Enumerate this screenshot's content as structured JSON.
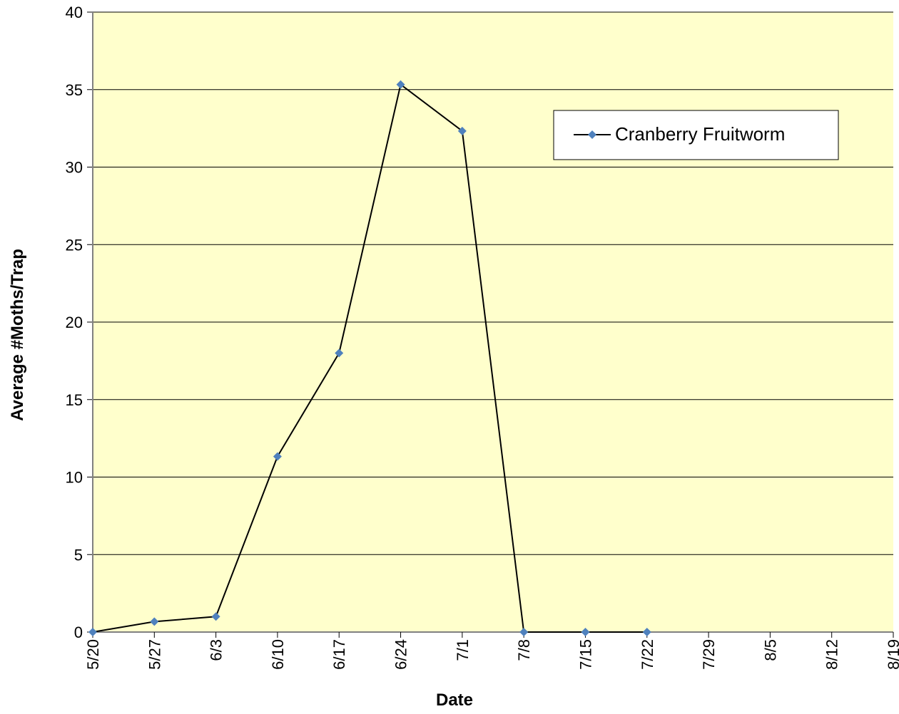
{
  "chart_data": {
    "type": "line",
    "x_label": "Date",
    "y_label": "Average #Moths/Trap",
    "x": [
      "5/20",
      "5/27",
      "6/3",
      "6/10",
      "6/17",
      "6/24",
      "7/1",
      "7/8",
      "7/15",
      "7/22"
    ],
    "series": [
      {
        "name": "Cranberry Fruitworm",
        "color": "#4f81bd",
        "line_color": "#000000",
        "values": [
          0,
          0.67,
          1,
          11.33,
          18,
          35.33,
          32.33,
          0,
          0,
          0
        ]
      }
    ],
    "xlim": [
      "5/20",
      "8/19"
    ],
    "xticks": [
      "5/20",
      "5/27",
      "6/3",
      "6/10",
      "6/17",
      "6/24",
      "7/1",
      "7/8",
      "7/15",
      "7/22",
      "7/29",
      "8/5",
      "8/12",
      "8/19"
    ],
    "ylim": [
      0,
      40
    ],
    "yticks": [
      0,
      5,
      10,
      15,
      20,
      25,
      30,
      35,
      40
    ],
    "grid": true,
    "legend": "upper right",
    "background": "#ffffcc"
  }
}
